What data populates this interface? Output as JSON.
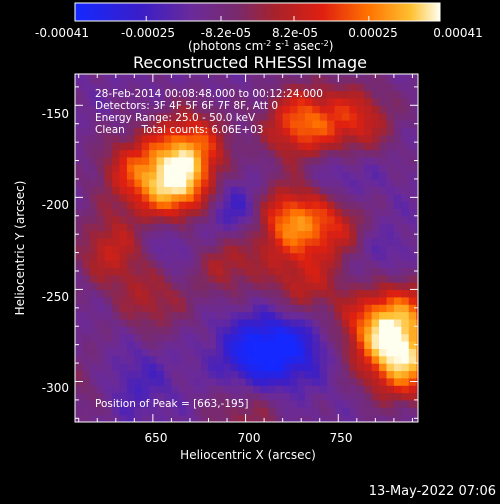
{
  "colors": {
    "background": "#000000",
    "text": "#ffffff",
    "map_low": "#1a2fd0",
    "map_mid": "#6a3aa8",
    "map_high": "#ff7a00",
    "map_peak": "#fff8b0"
  },
  "colorbar": {
    "tick_labels": [
      "-0.00041",
      "-0.00025",
      "-8.2e-05",
      "8.2e-05",
      "0.00025",
      "0.00041"
    ],
    "unit_label_main": "(photons cm",
    "unit_sup_1": "-2",
    "unit_mid_1": " s",
    "unit_sup_2": "-1",
    "unit_mid_2": " asec",
    "unit_sup_3": "-2",
    "unit_end": ")",
    "range": [
      -0.00041,
      0.00041
    ]
  },
  "info": {
    "line1": "28-Feb-2014 00:08:48.000 to 00:12:24.000",
    "line2": "Detectors: 3F 4F 5F 6F 7F 8F, Att 0",
    "line3": "Energy Range: 25.0 - 50.0 keV",
    "line4": "Clean     Total counts: 6.06E+03",
    "peak": "Position of Peak = [663,-195]"
  },
  "timestamp": "13-May-2022 07:06",
  "chart_data": {
    "type": "heatmap",
    "title": "Reconstructed RHESSI Image",
    "xlabel": "Heliocentric X (arcsec)",
    "ylabel": "Heliocentric Y (arcsec)",
    "xlim": [
      608,
      793
    ],
    "ylim": [
      -322,
      -133
    ],
    "x_ticks": [
      650,
      700,
      750
    ],
    "y_ticks": [
      -150,
      -200,
      -250,
      -300
    ],
    "grid": false,
    "peak_position": [
      663,
      -195
    ],
    "value_units": "photons cm^-2 s^-1 asec^-2",
    "grid_step_arcsec": 4,
    "sources": [
      {
        "x": 663,
        "y": -195,
        "value": 0.00041
      },
      {
        "x": 670,
        "y": -172,
        "value": 0.0003
      },
      {
        "x": 640,
        "y": -185,
        "value": 0.00022
      },
      {
        "x": 628,
        "y": -228,
        "value": 0.0002
      },
      {
        "x": 650,
        "y": -255,
        "value": 0.00015
      },
      {
        "x": 730,
        "y": -160,
        "value": 0.00032
      },
      {
        "x": 760,
        "y": -158,
        "value": 0.00022
      },
      {
        "x": 722,
        "y": -212,
        "value": 0.00035
      },
      {
        "x": 748,
        "y": -215,
        "value": 0.00022
      },
      {
        "x": 690,
        "y": -232,
        "value": 0.0002
      },
      {
        "x": 732,
        "y": -248,
        "value": 0.00018
      },
      {
        "x": 785,
        "y": -290,
        "value": 0.0004
      },
      {
        "x": 770,
        "y": -270,
        "value": 0.0003
      },
      {
        "x": 788,
        "y": -262,
        "value": 0.0002
      },
      {
        "x": 700,
        "y": -318,
        "value": 0.00012
      },
      {
        "x": 612,
        "y": -300,
        "value": 6e-05
      },
      {
        "x": 705,
        "y": -285,
        "value": -0.00025
      },
      {
        "x": 725,
        "y": -280,
        "value": -0.0002
      },
      {
        "x": 695,
        "y": -210,
        "value": -0.00022
      },
      {
        "x": 660,
        "y": -225,
        "value": -0.00012
      },
      {
        "x": 750,
        "y": -190,
        "value": -0.00012
      },
      {
        "x": 640,
        "y": -300,
        "value": -0.0001
      },
      {
        "x": 770,
        "y": -230,
        "value": -8e-05
      }
    ]
  }
}
